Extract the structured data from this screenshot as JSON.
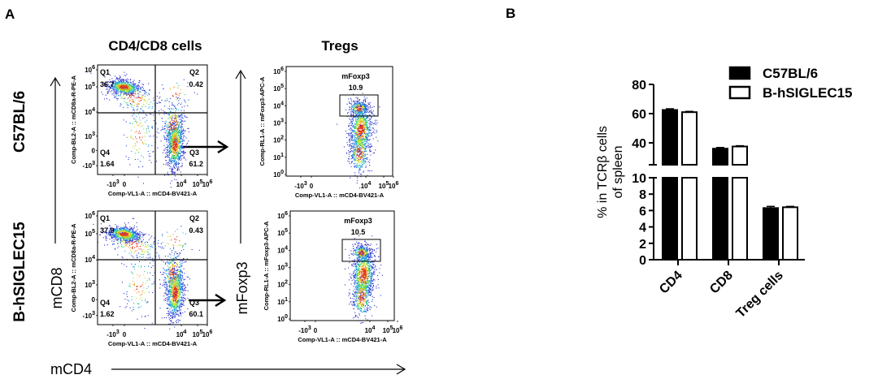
{
  "panel_a": {
    "label": "A",
    "col_titles": [
      "CD4/CD8 cells",
      "Tregs"
    ],
    "row_labels": [
      "C57BL/6",
      "B-hSIGLEC15"
    ],
    "axis_arrows": {
      "x": "mCD4",
      "y_left": "mCD8",
      "y_right": "mFoxp3"
    },
    "cd4cd8_plot": {
      "xlabel": "Comp-VL1-A :: mCD4-BV421-A",
      "ylabel": "Comp-BL2-A :: mCD8a-R-PE-A",
      "xticks": [
        "-10^3",
        "0",
        "10^4",
        "10^5",
        "10^6"
      ],
      "yticks": [
        "10^6",
        "10^5",
        "10^4",
        "10^3",
        "0",
        "-10^3"
      ]
    },
    "treg_plot": {
      "xlabel": "Comp-VL1-A :: mCD4-BV421-A",
      "ylabel": "Comp-RL1-A :: mFoxp3-APC-A",
      "xticks": [
        "-10^3",
        "0",
        "10^4",
        "10^5",
        "10^6"
      ],
      "yticks": [
        "10^6",
        "10^5",
        "10^4",
        "10^3",
        "10^2",
        "10^1",
        "10^0"
      ],
      "gate_name": "mFoxp3"
    },
    "rows": [
      {
        "strain": "C57BL/6",
        "quadrants": [
          {
            "name": "Q1",
            "value": "36.7"
          },
          {
            "name": "Q2",
            "value": "0.42"
          },
          {
            "name": "Q3",
            "value": "61.2"
          },
          {
            "name": "Q4",
            "value": "1.64"
          }
        ],
        "foxp3_gate": "10.9"
      },
      {
        "strain": "B-hSIGLEC15",
        "quadrants": [
          {
            "name": "Q1",
            "value": "37.9"
          },
          {
            "name": "Q2",
            "value": "0.43"
          },
          {
            "name": "Q3",
            "value": "60.1"
          },
          {
            "name": "Q4",
            "value": "1.62"
          }
        ],
        "foxp3_gate": "10.5"
      }
    ]
  },
  "panel_b": {
    "label": "B"
  },
  "chart_data": {
    "type": "bar",
    "title": "",
    "xlabel": "",
    "ylabel": "% in TCRβ cells of spleen",
    "ylabel_lines": [
      "% in TCRβ cells",
      "of spleen"
    ],
    "categories": [
      "CD4",
      "CD8",
      "Treg cells"
    ],
    "series": [
      {
        "name": "C57BL/6",
        "fill": "#000000",
        "values": [
          62.5,
          36.0,
          6.3
        ],
        "errors": [
          0.8,
          0.8,
          0.2
        ]
      },
      {
        "name": "B-hSIGLEC15",
        "fill": "#ffffff",
        "values": [
          61.0,
          37.5,
          6.4
        ],
        "errors": [
          0.5,
          0.5,
          0.1
        ]
      }
    ],
    "axis_break": {
      "lower_range": [
        0,
        10
      ],
      "upper_range": [
        25,
        80
      ]
    },
    "yticks_lower": [
      0,
      2,
      4,
      6,
      8,
      10
    ],
    "yticks_upper": [
      40,
      60,
      80
    ],
    "legend_position": "top-right",
    "grid": false
  }
}
